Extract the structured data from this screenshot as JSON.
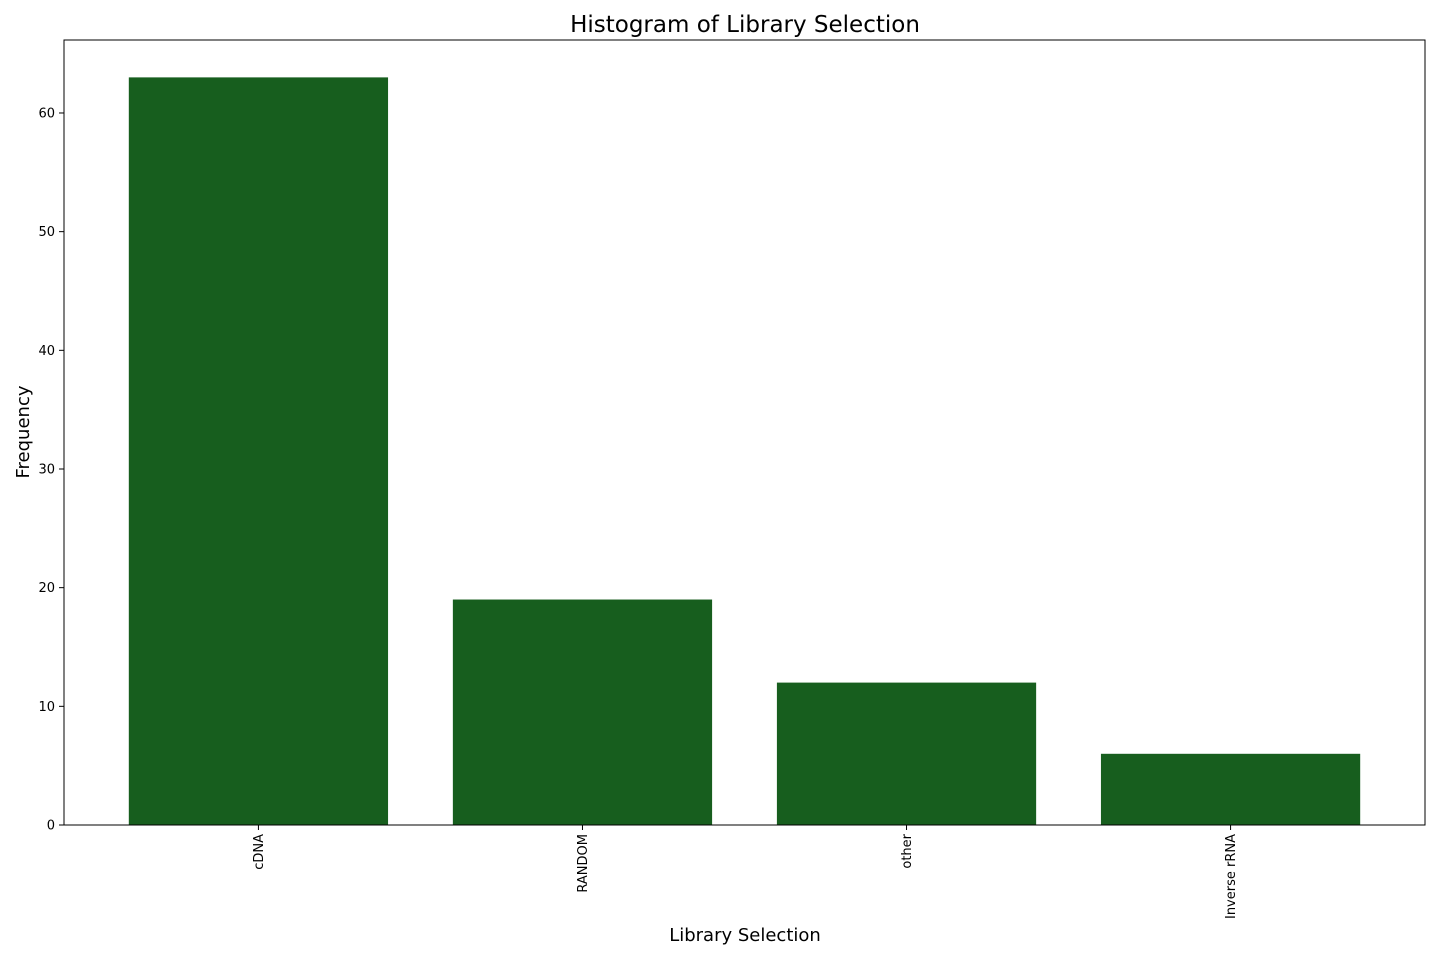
{
  "chart_data": {
    "type": "bar",
    "title": "Histogram of Library Selection",
    "xlabel": "Library Selection",
    "ylabel": "Frequency",
    "categories": [
      "cDNA",
      "RANDOM",
      "other",
      "Inverse rRNA"
    ],
    "values": [
      63,
      19,
      12,
      6
    ],
    "ylim": [
      0,
      66.15
    ],
    "yticks": [
      0,
      10,
      20,
      30,
      40,
      50,
      60
    ],
    "bar_color": "#175e1e",
    "grid": false,
    "legend": "none",
    "xtick_rotation": "vertical"
  }
}
